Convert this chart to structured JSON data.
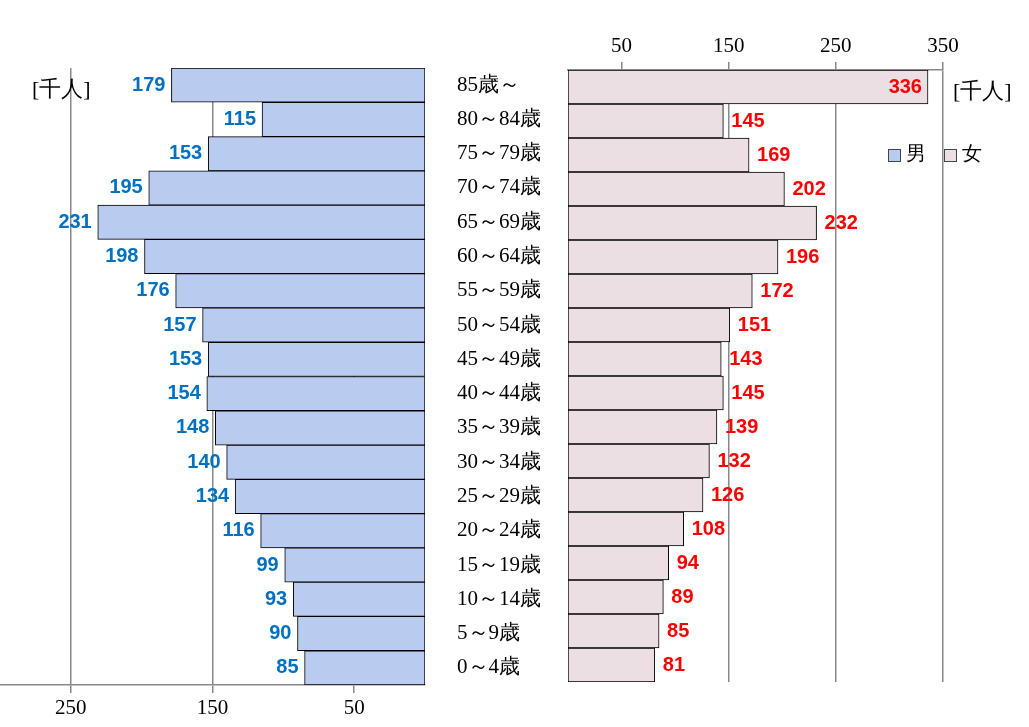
{
  "chart_data": [
    {
      "type": "bar",
      "orientation": "horizontal",
      "categories": [
        "85歳～",
        "80～84歳",
        "75～79歳",
        "70～74歳",
        "65～69歳",
        "60～64歳",
        "55～59歳",
        "50～54歳",
        "45～49歳",
        "40～44歳",
        "35～39歳",
        "30～34歳",
        "25～29歳",
        "20～24歳",
        "15～19歳",
        "10～14歳",
        "5～9歳",
        "0～4歳"
      ],
      "series": [
        {
          "name": "男",
          "color": "#b9cbef",
          "values": [
            179,
            115,
            153,
            195,
            231,
            198,
            176,
            157,
            153,
            154,
            148,
            140,
            134,
            116,
            99,
            93,
            90,
            85
          ]
        }
      ],
      "xlim": [
        300,
        0
      ],
      "xticks": [
        250,
        150,
        50
      ],
      "grid": "x",
      "data_labels": true,
      "xlabel": "[千人]",
      "legend": "top right"
    },
    {
      "type": "bar",
      "orientation": "horizontal",
      "categories": [
        null,
        null,
        null,
        null,
        null,
        null,
        null,
        null,
        null,
        null,
        null,
        null,
        null,
        null,
        null,
        null,
        null,
        null
      ],
      "series": [
        {
          "name": "女",
          "color": "#ecdfe4",
          "values": [
            336,
            145,
            169,
            202,
            232,
            196,
            172,
            151,
            143,
            145,
            139,
            132,
            126,
            108,
            94,
            89,
            85,
            81
          ]
        }
      ],
      "x2lim": [
        0,
        350
      ],
      "x2ticks": [
        50,
        150,
        250,
        350
      ],
      "grid": "x",
      "data_labels": true,
      "xlabel": "[千人]",
      "legend": "top right",
      "tick_labels": "x"
    }
  ]
}
